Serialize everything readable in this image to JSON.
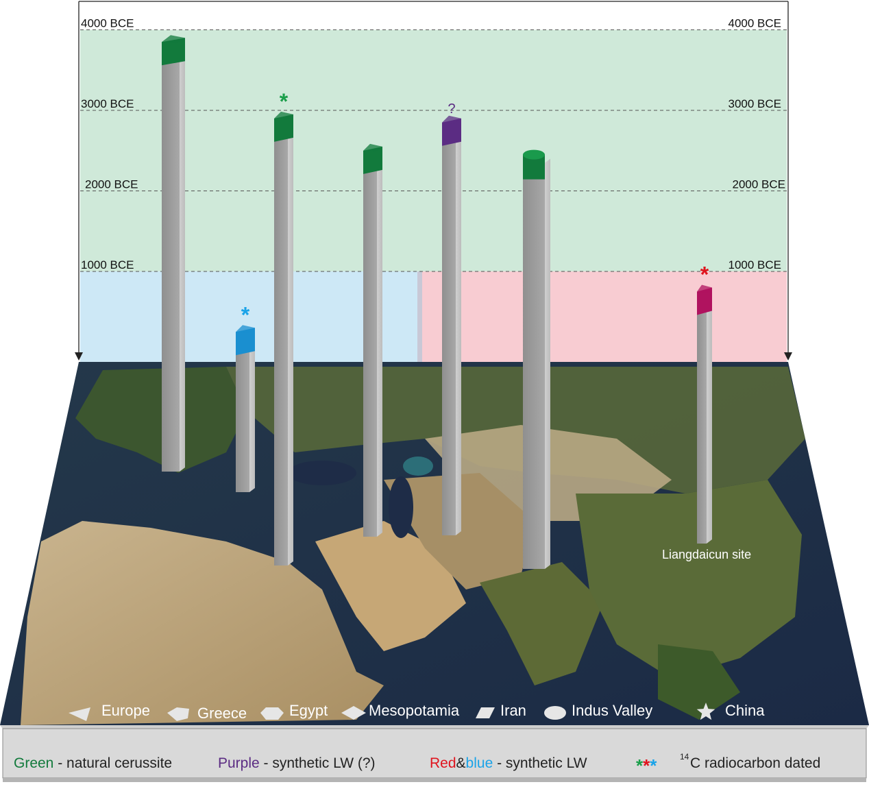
{
  "chart_data": {
    "type": "bar",
    "y_unit": "BCE",
    "y_ticks": [
      "4000 BCE",
      "3000 BCE",
      "2000 BCE",
      "1000 BCE"
    ],
    "ylim": [
      0,
      4000
    ],
    "categories": [
      "Europe",
      "Greece",
      "Egypt",
      "Mesopotamia",
      "Iran",
      "Indus Valley",
      "China"
    ],
    "values": [
      3900,
      300,
      2950,
      2550,
      2900,
      2450,
      800
    ],
    "bar_colors": [
      "#127a3c",
      "#1a8fd0",
      "#127a3c",
      "#127a3c",
      "#5b2c83",
      "#127a3c",
      "#b0135f"
    ],
    "markers": [
      "",
      "*",
      "*",
      "",
      "?",
      "",
      "*"
    ],
    "marker_colors": [
      "",
      "#1aa3e8",
      "#1a9e4a",
      "",
      "#5b2c83",
      "",
      "#e0141e"
    ],
    "annotation": "Liangdaicun site",
    "background_bands": [
      {
        "from": 1000,
        "to": 4000,
        "color": "#cfe9d9"
      },
      {
        "from": 0,
        "to": 1000,
        "color": "#cde8f6"
      },
      {
        "from": 0,
        "to": 1000,
        "color": "#f8ccd2"
      }
    ]
  },
  "colors": {
    "green": "#127a3c",
    "purple": "#5b2c83",
    "red": "#e0141e",
    "blue": "#1aa3e8",
    "text_dark": "#222222"
  },
  "key": {
    "green_word": "Green",
    "green_rest": " - natural cerussite",
    "purple_word": "Purple",
    "purple_rest": " - synthetic LW (?)",
    "red_word": "Red",
    "amp": "&",
    "blue_word": "blue",
    "redblue_rest": " - synthetic LW",
    "stars": [
      "*",
      "*",
      "*"
    ],
    "c14_sup": "14",
    "c14_text": "C  radiocarbon dated"
  },
  "icons": [
    "wedge-icon",
    "hexagon-icon",
    "octagon-icon",
    "diamond-icon",
    "parallelogram-icon",
    "ellipse-icon",
    "star-icon"
  ]
}
